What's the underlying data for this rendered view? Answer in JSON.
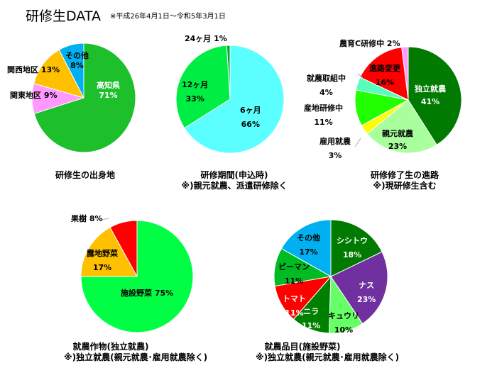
{
  "title": "研修生DATA",
  "period": "※平成26年4月1日～令和5年3月1日",
  "chart_data": [
    {
      "type": "pie",
      "title": "研修生の出身地",
      "subtitle": "",
      "categories": [
        "高知県",
        "関東地区",
        "関西地区",
        "その他"
      ],
      "values": [
        71,
        9,
        13,
        8
      ],
      "colors": [
        "#1dbf2b",
        "#ff99ff",
        "#ffc000",
        "#00b0f0"
      ],
      "labels": [
        "71%",
        "9%",
        "13%",
        "8%"
      ]
    },
    {
      "type": "pie",
      "title": "研修期間(申込時)",
      "subtitle": "※)親元就農、派遣研修除く",
      "categories": [
        "6ヶ月",
        "12ヶ月",
        "24ヶ月"
      ],
      "values": [
        66,
        33,
        1
      ],
      "colors": [
        "#5cffff",
        "#00ee44",
        "#00a82a"
      ],
      "labels": [
        "66%",
        "33%",
        "1%"
      ]
    },
    {
      "type": "pie",
      "title": "研修修了生の進路",
      "subtitle": "※)現研修生含む",
      "categories": [
        "独立就農",
        "親元就農",
        "雇用就農",
        "産地研修中",
        "就農取組中",
        "進路変更",
        "農育C研修中"
      ],
      "values": [
        41,
        23,
        3,
        11,
        4,
        16,
        2
      ],
      "colors": [
        "#007a00",
        "#a8ff9c",
        "#ffff00",
        "#22ff00",
        "#55ffbb",
        "#ff0000",
        "#ff99ff"
      ],
      "labels": [
        "41%",
        "23%",
        "3%",
        "11%",
        "4%",
        "16%",
        "2%"
      ]
    },
    {
      "type": "pie",
      "title": "就農作物(独立就農)",
      "subtitle": "※)独立就農(親元就農･雇用就農除く)",
      "categories": [
        "施設野菜",
        "露地野菜",
        "果樹"
      ],
      "values": [
        75,
        17,
        8
      ],
      "colors": [
        "#00ff44",
        "#ffc000",
        "#ff0000"
      ],
      "labels": [
        "75%",
        "17%",
        "8%"
      ]
    },
    {
      "type": "pie",
      "title": "就農品目(施設野菜)",
      "subtitle": "※)独立就農(親元就農･雇用就農除く)",
      "categories": [
        "シシトウ",
        "ナス",
        "キュウリ",
        "ニラ",
        "トマト",
        "ピーマン",
        "その他"
      ],
      "values": [
        18,
        23,
        10,
        11,
        11,
        11,
        17
      ],
      "colors": [
        "#007a00",
        "#7030a0",
        "#66ff66",
        "#008000",
        "#ff0000",
        "#00bb22",
        "#00b0f0"
      ],
      "labels": [
        "18%",
        "23%",
        "10%",
        "11%",
        "11%",
        "11%",
        "17%"
      ]
    }
  ]
}
